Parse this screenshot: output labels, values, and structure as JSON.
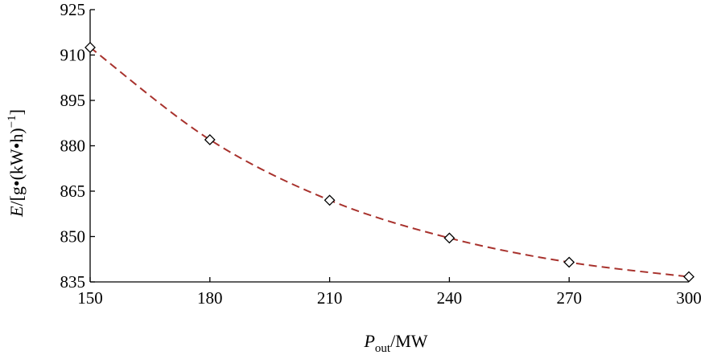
{
  "chart_data": {
    "type": "line",
    "title": "",
    "xlabel": {
      "main": "P",
      "subscript": "out",
      "unit": "/MW"
    },
    "ylabel": {
      "main": "E",
      "unit_prefix": "/[g•(kW•h)",
      "superscript": "−1",
      "unit_suffix": "]"
    },
    "xlim": [
      150,
      300
    ],
    "ylim": [
      835,
      925
    ],
    "xticks": [
      150,
      180,
      210,
      240,
      270,
      300
    ],
    "yticks": [
      835,
      850,
      865,
      880,
      895,
      910,
      925
    ],
    "grid": false,
    "series": [
      {
        "x": [
          150,
          180,
          210,
          240,
          270,
          300
        ],
        "y": [
          912.5,
          882,
          862,
          849.5,
          841.5,
          836.7
        ],
        "line_style": "dashed",
        "line_color": "#a8322d",
        "marker": "diamond",
        "marker_color": "#000000"
      }
    ]
  }
}
